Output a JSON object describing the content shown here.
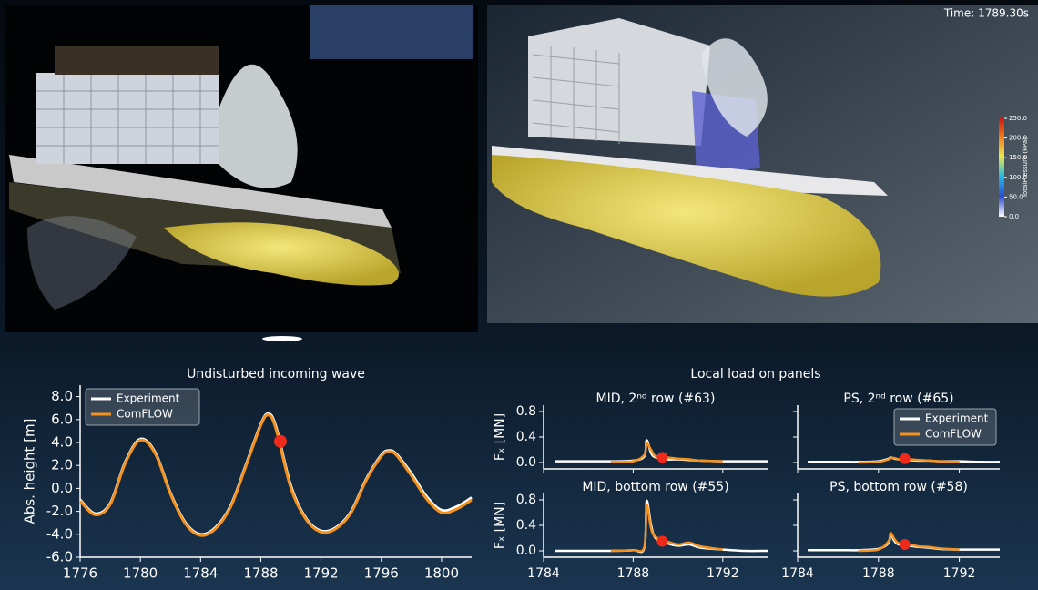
{
  "time_label": "Time: 1789.30s",
  "colorbar": {
    "title": "TotalPressure (kPa)",
    "lim": [
      0,
      250
    ],
    "ticks": [
      {
        "value": 0,
        "label": "0.0"
      },
      {
        "value": 50,
        "label": "50.0"
      },
      {
        "value": 100,
        "label": "100.0"
      },
      {
        "value": 150,
        "label": "150.0"
      },
      {
        "value": 200,
        "label": "200.0"
      },
      {
        "value": 250,
        "label": "250.0"
      }
    ]
  },
  "panel_group_title": "Local load on panels",
  "chart_data": [
    {
      "type": "line",
      "title": "Undisturbed incoming wave",
      "ylabel": "Abs. height [m]",
      "x": [
        1776,
        1777,
        1778,
        1779,
        1780,
        1781,
        1782,
        1783,
        1784,
        1785,
        1786,
        1787,
        1788,
        1788.5,
        1789,
        1790,
        1791,
        1792,
        1793,
        1794,
        1795,
        1796,
        1796.5,
        1797,
        1798,
        1799,
        1800,
        1801,
        1802
      ],
      "series": [
        {
          "name": "Experiment",
          "color": "#ffffff",
          "values": [
            -1.0,
            -2.2,
            -1.3,
            2.3,
            4.3,
            3.1,
            -0.4,
            -3.0,
            -4.0,
            -3.4,
            -1.5,
            2.0,
            5.6,
            6.5,
            5.4,
            0.2,
            -2.6,
            -3.7,
            -3.4,
            -2.0,
            0.8,
            2.9,
            3.3,
            3.0,
            1.3,
            -0.7,
            -1.9,
            -1.6,
            -0.8
          ]
        },
        {
          "name": "ComFLOW",
          "color": "#f5921e",
          "values": [
            -1.1,
            -2.3,
            -1.4,
            2.2,
            4.2,
            3.0,
            -0.5,
            -3.1,
            -4.1,
            -3.5,
            -1.6,
            1.9,
            5.5,
            6.4,
            5.2,
            0.0,
            -2.7,
            -3.8,
            -3.5,
            -2.1,
            0.7,
            2.8,
            3.2,
            2.9,
            1.1,
            -0.9,
            -2.1,
            -1.8,
            -1.0
          ]
        }
      ],
      "marker": {
        "x": 1789.3,
        "y": 4.1,
        "color": "#ee2a1b"
      },
      "xlim": [
        1776,
        1802
      ],
      "xticks": [
        1776,
        1780,
        1784,
        1788,
        1792,
        1796,
        1800
      ],
      "ylim": [
        -6,
        9
      ],
      "yticks": [
        {
          "value": -6,
          "label": "-6.0"
        },
        {
          "value": -4,
          "label": "-4.0"
        },
        {
          "value": -2,
          "label": "-2.0"
        },
        {
          "value": 0,
          "label": "0.0"
        },
        {
          "value": 2,
          "label": "2.0"
        },
        {
          "value": 4,
          "label": "4.0"
        },
        {
          "value": 6,
          "label": "6.0"
        },
        {
          "value": 8,
          "label": "8.0"
        }
      ],
      "legend": "upper left",
      "xtick_labels": true,
      "ytick_labels": true
    },
    {
      "type": "line",
      "title": "MID, 2ⁿᵈ row (#63)",
      "ylabel": "Fₓ [MN]",
      "x": [
        1784.5,
        1785.5,
        1786.5,
        1787,
        1788,
        1788.5,
        1788.6,
        1788.8,
        1789,
        1789.5,
        1790,
        1790.5,
        1791,
        1792,
        1793,
        1794
      ],
      "series": [
        {
          "name": "Experiment",
          "color": "#ffffff",
          "values": [
            0.02,
            0.02,
            0.02,
            0.02,
            0.03,
            0.1,
            0.35,
            0.15,
            0.08,
            0.05,
            0.05,
            0.04,
            0.03,
            0.02,
            0.02,
            0.02
          ]
        },
        {
          "name": "ComFLOW",
          "color": "#f5921e",
          "values": [
            null,
            null,
            null,
            0.01,
            0.02,
            0.12,
            0.3,
            0.2,
            0.1,
            0.08,
            0.06,
            0.05,
            0.03,
            0.02,
            null,
            null
          ]
        }
      ],
      "marker": {
        "x": 1789.3,
        "y": 0.08,
        "color": "#ee2a1b"
      },
      "xlim": [
        1784,
        1794
      ],
      "xticks": [
        1784,
        1788,
        1792
      ],
      "ylim": [
        -0.1,
        0.9
      ],
      "yticks": [
        {
          "value": 0,
          "label": "0.0"
        },
        {
          "value": 0.4,
          "label": "0.4"
        },
        {
          "value": 0.8,
          "label": "0.8"
        }
      ],
      "legend": "none",
      "xtick_labels": false,
      "ytick_labels": true
    },
    {
      "type": "line",
      "title": "PS, 2ⁿᵈ row (#65)",
      "x": [
        1784.5,
        1785.5,
        1786.5,
        1787,
        1788,
        1788.5,
        1788.6,
        1788.8,
        1789,
        1789.5,
        1790,
        1790.5,
        1791,
        1792,
        1793,
        1794
      ],
      "series": [
        {
          "name": "Experiment",
          "color": "#ffffff",
          "values": [
            0.01,
            0.01,
            0.01,
            0.01,
            0.02,
            0.06,
            0.08,
            0.06,
            0.05,
            0.04,
            0.03,
            0.03,
            0.02,
            0.02,
            0.01,
            0.01
          ]
        },
        {
          "name": "ComFLOW",
          "color": "#f5921e",
          "values": [
            null,
            null,
            null,
            0.0,
            0.01,
            0.05,
            0.07,
            0.07,
            0.05,
            0.05,
            0.04,
            0.03,
            0.02,
            0.01,
            null,
            null
          ]
        }
      ],
      "marker": {
        "x": 1789.3,
        "y": 0.06,
        "color": "#ee2a1b"
      },
      "xlim": [
        1784,
        1794
      ],
      "xticks": [
        1784,
        1788,
        1792
      ],
      "ylim": [
        -0.1,
        0.9
      ],
      "yticks": [
        0,
        0.4,
        0.8
      ],
      "legend": "upper right",
      "xtick_labels": false,
      "ytick_labels": false
    },
    {
      "type": "line",
      "title": "MID, bottom row (#55)",
      "ylabel": "Fₓ [MN]",
      "x": [
        1784.5,
        1785.5,
        1786.5,
        1787,
        1788,
        1788.5,
        1788.6,
        1788.8,
        1789,
        1789.5,
        1790,
        1790.5,
        1791,
        1792,
        1793,
        1794
      ],
      "series": [
        {
          "name": "Experiment",
          "color": "#ffffff",
          "values": [
            0.0,
            0.0,
            0.0,
            0.0,
            0.01,
            0.05,
            0.78,
            0.4,
            0.2,
            0.12,
            0.08,
            0.1,
            0.05,
            0.02,
            0.0,
            0.0
          ]
        },
        {
          "name": "ComFLOW",
          "color": "#f5921e",
          "values": [
            null,
            null,
            null,
            0.0,
            0.01,
            0.06,
            0.72,
            0.35,
            0.22,
            0.15,
            0.1,
            0.13,
            0.07,
            0.02,
            null,
            null
          ]
        }
      ],
      "marker": {
        "x": 1789.3,
        "y": 0.15,
        "color": "#ee2a1b"
      },
      "xlim": [
        1784,
        1794
      ],
      "xticks": [
        1784,
        1788,
        1792
      ],
      "ylim": [
        -0.1,
        0.9
      ],
      "yticks": [
        {
          "value": 0,
          "label": "0.0"
        },
        {
          "value": 0.4,
          "label": "0.4"
        },
        {
          "value": 0.8,
          "label": "0.8"
        }
      ],
      "legend": "none",
      "xtick_labels": true,
      "ytick_labels": true
    },
    {
      "type": "line",
      "title": "PS, bottom row (#58)",
      "x": [
        1784.5,
        1785.5,
        1786.5,
        1787,
        1788,
        1788.5,
        1788.6,
        1788.8,
        1789,
        1789.5,
        1790,
        1790.5,
        1791,
        1792,
        1793,
        1794
      ],
      "series": [
        {
          "name": "Experiment",
          "color": "#ffffff",
          "values": [
            0.01,
            0.01,
            0.01,
            0.01,
            0.03,
            0.12,
            0.25,
            0.15,
            0.1,
            0.08,
            0.06,
            0.05,
            0.03,
            0.02,
            0.02,
            0.02
          ]
        },
        {
          "name": "ComFLOW",
          "color": "#f5921e",
          "values": [
            null,
            null,
            null,
            0.0,
            0.02,
            0.15,
            0.28,
            0.18,
            0.12,
            0.1,
            0.07,
            0.06,
            0.04,
            0.02,
            null,
            null
          ]
        }
      ],
      "marker": {
        "x": 1789.3,
        "y": 0.1,
        "color": "#ee2a1b"
      },
      "xlim": [
        1784,
        1794
      ],
      "xticks": [
        1784,
        1788,
        1792
      ],
      "ylim": [
        -0.1,
        0.9
      ],
      "yticks": [
        0,
        0.4,
        0.8
      ],
      "legend": "none",
      "xtick_labels": true,
      "ytick_labels": false
    }
  ]
}
